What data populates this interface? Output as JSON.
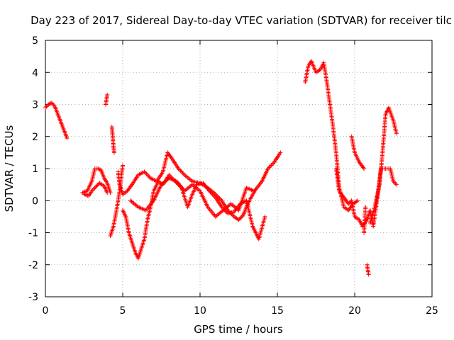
{
  "chart_data": {
    "type": "scatter",
    "title": "Day 223 of 2017, Sidereal Day-to-day VTEC variation (SDTVAR) for receiver tilc",
    "xlabel": "GPS time / hours",
    "ylabel": "SDTVAR / TECUs",
    "xlim": [
      0,
      25
    ],
    "ylim": [
      -3,
      5
    ],
    "xticks": [
      0,
      5,
      10,
      15,
      20,
      25
    ],
    "yticks": [
      -3,
      -2,
      -1,
      0,
      1,
      2,
      3,
      4,
      5
    ],
    "grid": true,
    "marker": "+",
    "series": [
      {
        "name": "SDTVAR",
        "color": "#ff0000",
        "segments": [
          [
            [
              0.0,
              2.9
            ],
            [
              0.2,
              3.0
            ],
            [
              0.4,
              3.05
            ],
            [
              0.6,
              2.95
            ],
            [
              0.8,
              2.7
            ],
            [
              1.0,
              2.45
            ],
            [
              1.2,
              2.2
            ],
            [
              1.4,
              1.95
            ]
          ],
          [
            [
              2.4,
              0.25
            ],
            [
              2.7,
              0.3
            ],
            [
              3.0,
              0.6
            ],
            [
              3.2,
              1.0
            ],
            [
              3.4,
              1.0
            ],
            [
              3.6,
              0.95
            ],
            [
              3.8,
              0.7
            ],
            [
              4.0,
              0.55
            ],
            [
              4.2,
              0.25
            ]
          ],
          [
            [
              2.5,
              0.2
            ],
            [
              2.8,
              0.15
            ],
            [
              3.0,
              0.3
            ],
            [
              3.2,
              0.4
            ],
            [
              3.5,
              0.55
            ],
            [
              3.8,
              0.45
            ],
            [
              4.0,
              0.25
            ]
          ],
          [
            [
              3.9,
              3.0
            ],
            [
              4.0,
              3.3
            ]
          ],
          [
            [
              4.3,
              2.3
            ],
            [
              4.35,
              2.0
            ],
            [
              4.4,
              1.7
            ],
            [
              4.45,
              1.5
            ]
          ],
          [
            [
              4.2,
              -1.1
            ],
            [
              4.4,
              -0.8
            ],
            [
              4.6,
              -0.3
            ],
            [
              4.8,
              0.3
            ],
            [
              5.0,
              1.1
            ]
          ],
          [
            [
              4.7,
              0.9
            ],
            [
              4.8,
              0.5
            ],
            [
              5.0,
              0.2
            ],
            [
              5.3,
              0.3
            ],
            [
              5.6,
              0.5
            ],
            [
              6.0,
              0.8
            ],
            [
              6.4,
              0.9
            ],
            [
              6.8,
              0.7
            ],
            [
              7.2,
              0.6
            ],
            [
              7.6,
              0.9
            ],
            [
              7.9,
              1.5
            ],
            [
              8.2,
              1.3
            ],
            [
              8.6,
              1.0
            ],
            [
              9.0,
              0.8
            ],
            [
              9.5,
              0.6
            ],
            [
              10.0,
              0.55
            ],
            [
              10.5,
              0.4
            ],
            [
              11.0,
              0.2
            ],
            [
              11.4,
              0.0
            ],
            [
              11.8,
              -0.3
            ],
            [
              12.2,
              -0.5
            ],
            [
              12.5,
              -0.6
            ],
            [
              12.8,
              -0.45
            ],
            [
              13.0,
              -0.2
            ],
            [
              13.3,
              0.1
            ],
            [
              13.6,
              0.35
            ],
            [
              14.0,
              0.6
            ],
            [
              14.4,
              1.0
            ],
            [
              14.8,
              1.2
            ],
            [
              15.2,
              1.5
            ]
          ],
          [
            [
              5.0,
              -0.3
            ],
            [
              5.2,
              -0.5
            ],
            [
              5.4,
              -1.0
            ],
            [
              5.6,
              -1.3
            ],
            [
              5.8,
              -1.6
            ],
            [
              6.0,
              -1.8
            ],
            [
              6.2,
              -1.5
            ],
            [
              6.4,
              -1.2
            ],
            [
              6.6,
              -0.6
            ],
            [
              6.8,
              -0.2
            ],
            [
              7.0,
              0.3
            ],
            [
              7.3,
              0.6
            ],
            [
              7.6,
              0.5
            ],
            [
              8.0,
              0.8
            ],
            [
              8.4,
              0.6
            ],
            [
              8.8,
              0.4
            ],
            [
              9.2,
              -0.2
            ],
            [
              9.5,
              0.2
            ],
            [
              9.8,
              0.5
            ],
            [
              10.2,
              0.55
            ],
            [
              10.6,
              0.3
            ],
            [
              11.0,
              0.1
            ],
            [
              11.4,
              -0.2
            ],
            [
              11.8,
              -0.4
            ],
            [
              12.2,
              -0.35
            ],
            [
              12.6,
              -0.1
            ],
            [
              13.0,
              0.0
            ],
            [
              13.4,
              -0.8
            ],
            [
              13.8,
              -1.2
            ],
            [
              14.2,
              -0.5
            ]
          ],
          [
            [
              5.5,
              0.0
            ],
            [
              6.0,
              -0.2
            ],
            [
              6.5,
              -0.3
            ],
            [
              7.0,
              0.0
            ],
            [
              7.5,
              0.5
            ],
            [
              8.0,
              0.7
            ],
            [
              8.5,
              0.6
            ],
            [
              9.0,
              0.3
            ],
            [
              9.5,
              0.5
            ],
            [
              10.0,
              0.3
            ],
            [
              10.5,
              -0.2
            ],
            [
              11.0,
              -0.5
            ],
            [
              11.5,
              -0.3
            ],
            [
              12.0,
              -0.1
            ],
            [
              12.5,
              -0.3
            ],
            [
              13.0,
              0.4
            ],
            [
              13.5,
              0.3
            ]
          ],
          [
            [
              16.8,
              3.7
            ],
            [
              17.0,
              4.2
            ],
            [
              17.2,
              4.35
            ],
            [
              17.5,
              4.0
            ],
            [
              17.8,
              4.1
            ],
            [
              18.0,
              4.3
            ],
            [
              18.2,
              3.7
            ],
            [
              18.4,
              3.0
            ],
            [
              18.6,
              2.3
            ],
            [
              18.8,
              1.5
            ],
            [
              19.0,
              0.4
            ],
            [
              19.3,
              -0.2
            ],
            [
              19.6,
              -0.3
            ],
            [
              19.9,
              -0.1
            ],
            [
              20.2,
              0.0
            ]
          ],
          [
            [
              18.8,
              1.0
            ],
            [
              19.0,
              0.3
            ],
            [
              19.3,
              0.1
            ],
            [
              19.6,
              -0.1
            ],
            [
              19.8,
              0.0
            ],
            [
              20.0,
              -0.5
            ],
            [
              20.3,
              -0.6
            ],
            [
              20.5,
              -0.8
            ],
            [
              20.8,
              -0.6
            ],
            [
              21.0,
              -0.3
            ],
            [
              21.2,
              -0.8
            ],
            [
              21.5,
              0.2
            ],
            [
              21.7,
              1.0
            ],
            [
              22.0,
              1.0
            ],
            [
              22.3,
              1.0
            ],
            [
              22.5,
              0.6
            ],
            [
              22.7,
              0.5
            ]
          ],
          [
            [
              19.8,
              2.0
            ],
            [
              20.0,
              1.5
            ],
            [
              20.3,
              1.2
            ],
            [
              20.6,
              1.0
            ]
          ],
          [
            [
              20.6,
              -1.0
            ],
            [
              20.7,
              -0.2
            ]
          ],
          [
            [
              20.8,
              -2.0
            ],
            [
              20.9,
              -2.3
            ]
          ],
          [
            [
              21.0,
              -0.7
            ],
            [
              21.3,
              -0.2
            ],
            [
              21.6,
              0.5
            ],
            [
              21.8,
              1.5
            ],
            [
              22.0,
              2.7
            ],
            [
              22.2,
              2.9
            ],
            [
              22.5,
              2.5
            ],
            [
              22.7,
              2.1
            ]
          ]
        ]
      }
    ]
  }
}
